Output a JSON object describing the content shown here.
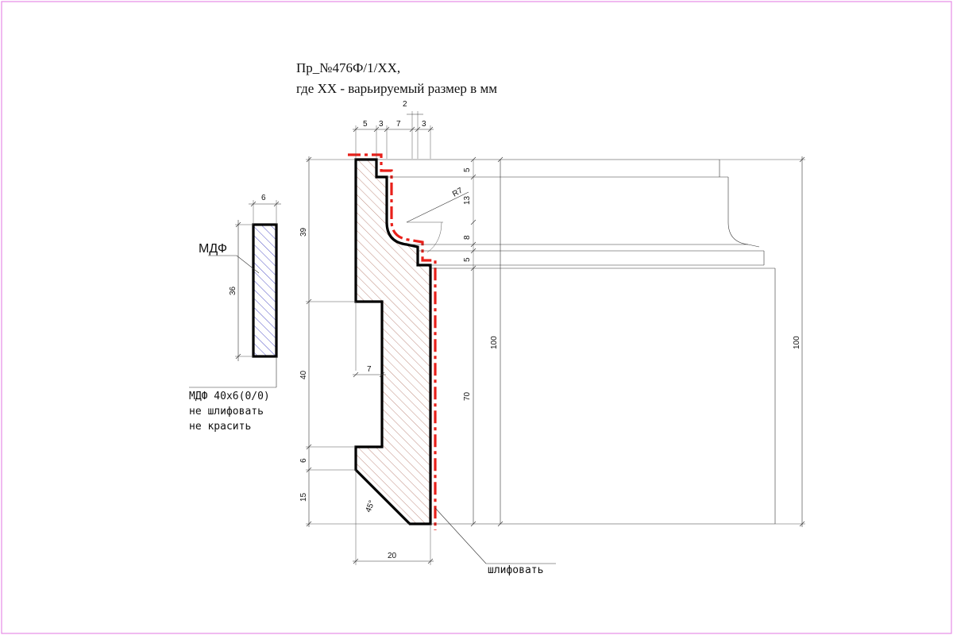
{
  "title": {
    "line1": "Пр_№476Ф/1/ХХ,",
    "line2": "где ХХ - варьируемый размер в мм"
  },
  "mdf_part": {
    "label": "МДФ",
    "width_dim": "6",
    "height_dim": "36",
    "note_lines": [
      "МДФ 40х6(0/0)",
      "не шлифовать",
      "не красить"
    ]
  },
  "profile": {
    "top_dims": [
      "5",
      "3",
      "7",
      "2",
      "3"
    ],
    "left_dims": [
      "39",
      "40",
      "6",
      "15"
    ],
    "groove_dim": "7",
    "bottom_width_dim": "20",
    "angle_label": "45°",
    "radius_label": "R7",
    "right_dims": [
      "5",
      "13",
      "8",
      "5",
      "70"
    ],
    "overall_height_inner": "100",
    "overall_height_outer": "100"
  },
  "sand_note": "шлифовать",
  "colors": {
    "frame": "#e58be5",
    "sanding_line": "#e8201a",
    "mdf_hatch": "#3f3fc0",
    "profile_hatch": "#b07060"
  }
}
